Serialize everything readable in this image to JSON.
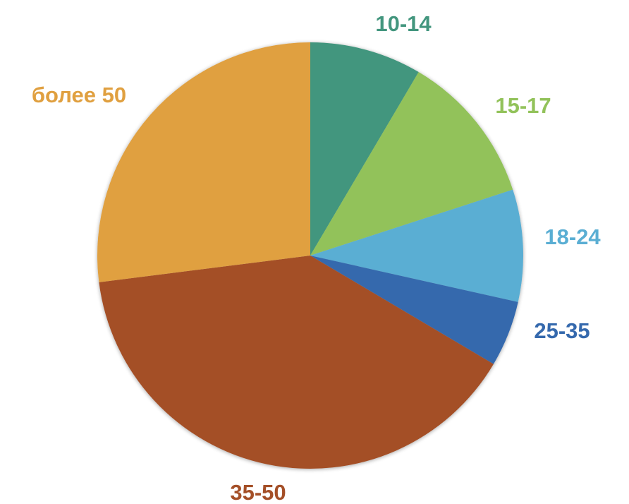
{
  "chart_data": {
    "type": "pie",
    "title": "",
    "slices": [
      {
        "label": "10-14",
        "value": 8.5,
        "color": "#43967E"
      },
      {
        "label": "15-17",
        "value": 11.5,
        "color": "#92C25A"
      },
      {
        "label": "18-24",
        "value": 8.5,
        "color": "#5AAED3"
      },
      {
        "label": "25-35",
        "value": 5.0,
        "color": "#3569AD"
      },
      {
        "label": "35-50",
        "value": 39.5,
        "color": "#A44F27"
      },
      {
        "label": "более 50",
        "value": 27.0,
        "color": "#E0A040"
      }
    ],
    "start_angle": "12 o'clock",
    "direction": "clockwise",
    "legend": "none",
    "labels": "outside, colored to match slice"
  }
}
